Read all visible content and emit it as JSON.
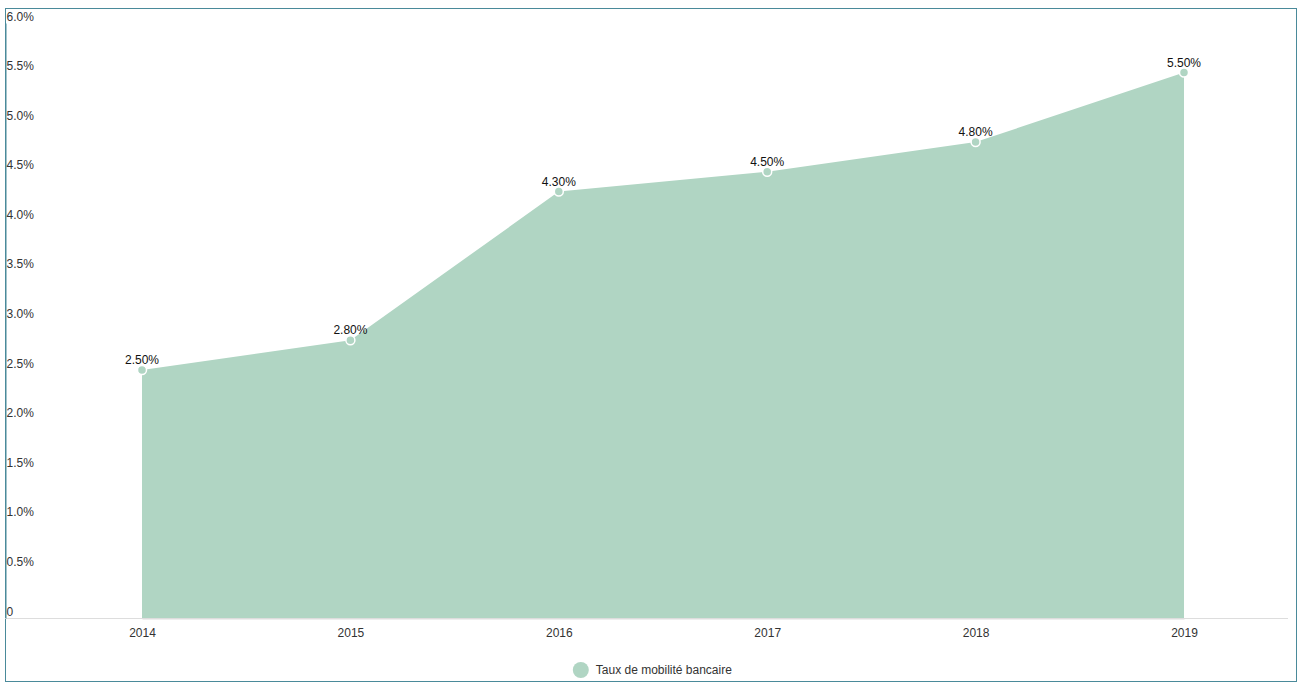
{
  "chart_data": {
    "type": "area",
    "categories": [
      "2014",
      "2015",
      "2016",
      "2017",
      "2018",
      "2019"
    ],
    "series": [
      {
        "name": "Taux de mobilité bancaire",
        "color": "#b0d5c3",
        "values": [
          2.5,
          2.8,
          4.3,
          4.5,
          4.8,
          5.5
        ],
        "value_labels": [
          "2.50%",
          "2.80%",
          "4.30%",
          "4.50%",
          "4.80%",
          "5.50%"
        ]
      }
    ],
    "ylim": [
      0,
      6
    ],
    "yticks": [
      0,
      {
        "value": 0.5,
        "label": "0.5%"
      },
      {
        "value": 1,
        "label": "1.0%"
      },
      {
        "value": 1.5,
        "label": "1.5%"
      },
      {
        "value": 2,
        "label": "2.0%"
      },
      {
        "value": 2.5,
        "label": "2.5%"
      },
      {
        "value": 3,
        "label": "3.0%"
      },
      {
        "value": 3.5,
        "label": "3.5%"
      },
      {
        "value": 4,
        "label": "4.0%"
      },
      {
        "value": 4.5,
        "label": "4.5%"
      },
      {
        "value": 5,
        "label": "5.0%"
      },
      {
        "value": 5.5,
        "label": "5.5%"
      },
      {
        "value": 6,
        "label": "6.0%"
      }
    ],
    "grid": false,
    "data_labels": true,
    "legend": "bottom"
  }
}
